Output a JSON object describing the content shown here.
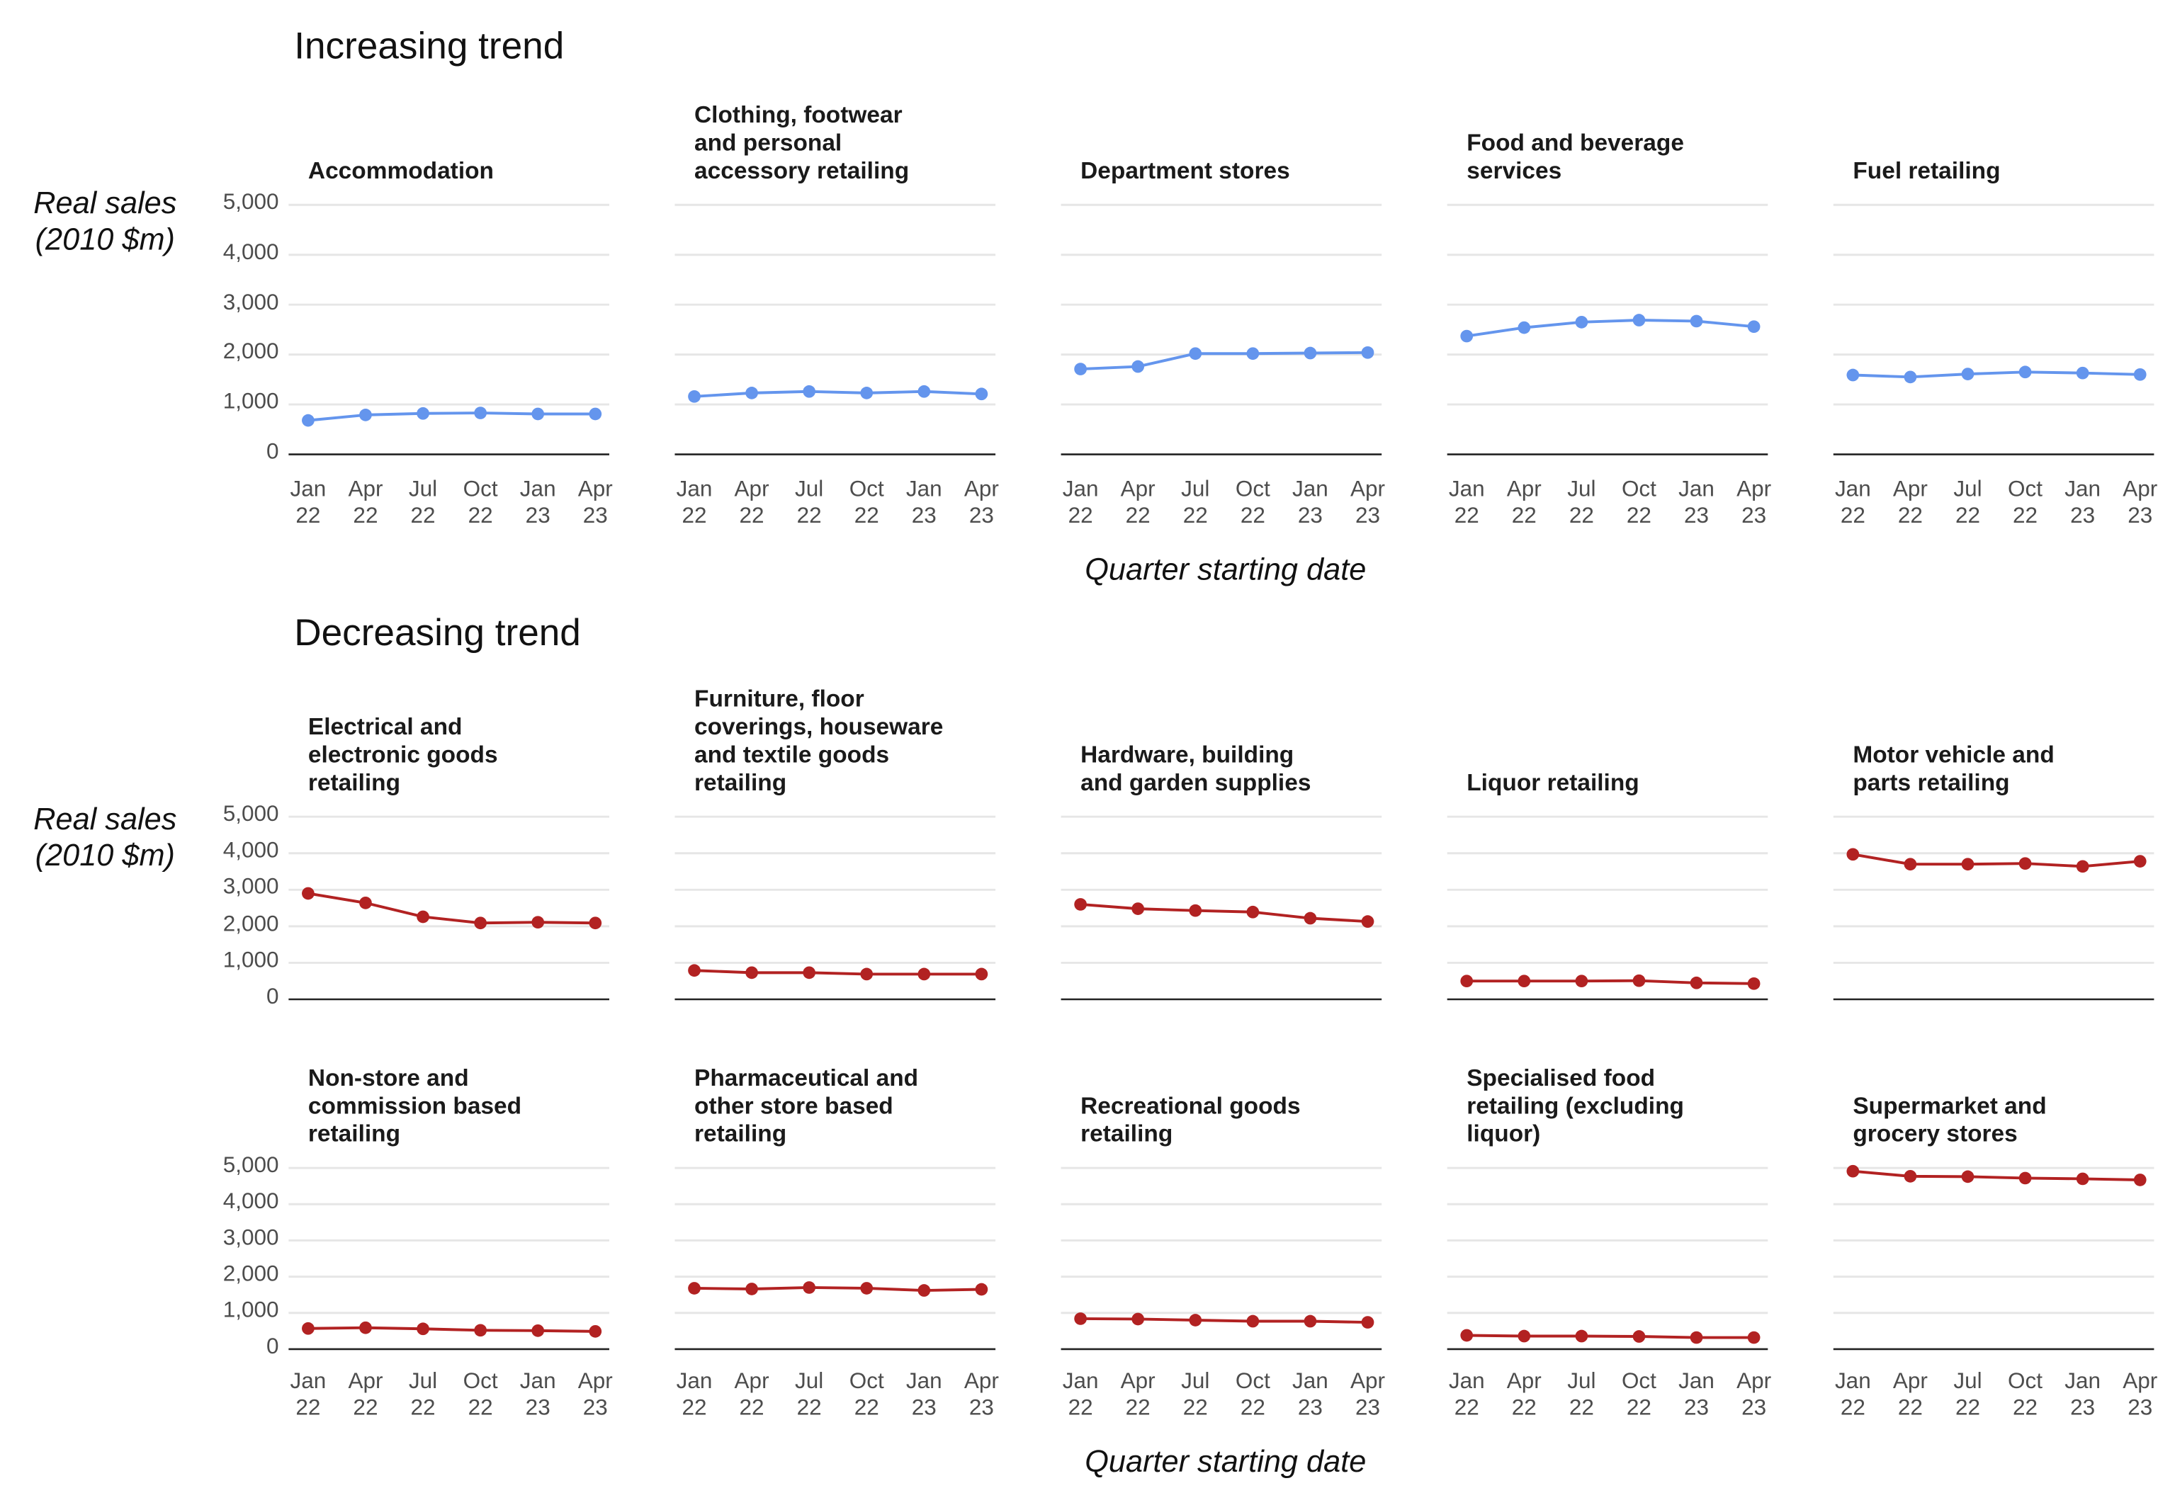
{
  "groups": [
    {
      "title": "Increasing trend",
      "y_label": "Real sales\n(2010 $m)",
      "x_label": "Quarter starting date"
    },
    {
      "title": "Decreasing trend",
      "y_label": "Real sales\n(2010 $m)",
      "x_label": "Quarter starting date"
    }
  ],
  "chart_data": [
    {
      "type": "line",
      "title": "Accommodation",
      "categories": [
        "Jan\n22",
        "Apr\n22",
        "Jul\n22",
        "Oct\n22",
        "Jan\n23",
        "Apr\n23"
      ],
      "values": [
        680,
        790,
        820,
        830,
        810,
        810
      ],
      "color": "#6495ed",
      "ylim": [
        0,
        5000
      ],
      "yticks": [
        0,
        {
          "value": 1000,
          "label": "1,000"
        },
        {
          "value": 2000,
          "label": "2,000"
        },
        {
          "value": 3000,
          "label": "3,000"
        },
        {
          "value": 4000,
          "label": "4,000"
        },
        {
          "value": 5000,
          "label": "5,000"
        }
      ]
    },
    {
      "type": "line",
      "title": "Clothing, footwear\nand personal\naccessory retailing",
      "categories": [
        "Jan\n22",
        "Apr\n22",
        "Jul\n22",
        "Oct\n22",
        "Jan\n23",
        "Apr\n23"
      ],
      "values": [
        1160,
        1230,
        1260,
        1230,
        1260,
        1210
      ],
      "color": "#6495ed",
      "ylim": [
        0,
        5000
      ],
      "yticks": [
        0,
        1000,
        2000,
        3000,
        4000,
        5000
      ]
    },
    {
      "type": "line",
      "title": "Department stores",
      "categories": [
        "Jan\n22",
        "Apr\n22",
        "Jul\n22",
        "Oct\n22",
        "Jan\n23",
        "Apr\n23"
      ],
      "values": [
        1710,
        1760,
        2020,
        2020,
        2030,
        2040
      ],
      "color": "#6495ed",
      "ylim": [
        0,
        5000
      ],
      "yticks": [
        0,
        1000,
        2000,
        3000,
        4000,
        5000
      ]
    },
    {
      "type": "line",
      "title": "Food and beverage\nservices",
      "categories": [
        "Jan\n22",
        "Apr\n22",
        "Jul\n22",
        "Oct\n22",
        "Jan\n23",
        "Apr\n23"
      ],
      "values": [
        2370,
        2540,
        2650,
        2690,
        2670,
        2560
      ],
      "color": "#6495ed",
      "ylim": [
        0,
        5000
      ],
      "yticks": [
        0,
        1000,
        2000,
        3000,
        4000,
        5000
      ]
    },
    {
      "type": "line",
      "title": "Fuel retailing",
      "categories": [
        "Jan\n22",
        "Apr\n22",
        "Jul\n22",
        "Oct\n22",
        "Jan\n23",
        "Apr\n23"
      ],
      "values": [
        1590,
        1550,
        1610,
        1650,
        1630,
        1600
      ],
      "color": "#6495ed",
      "ylim": [
        0,
        5000
      ],
      "yticks": [
        0,
        1000,
        2000,
        3000,
        4000,
        5000
      ]
    },
    {
      "type": "line",
      "title": "Electrical and\nelectronic goods\nretailing",
      "categories": [
        null,
        null,
        null,
        null,
        null,
        null
      ],
      "values": [
        2900,
        2640,
        2260,
        2090,
        2110,
        2090
      ],
      "color": "#b22222",
      "ylim": [
        0,
        5000
      ],
      "yticks": [
        0,
        {
          "value": 1000,
          "label": "1,000"
        },
        {
          "value": 2000,
          "label": "2,000"
        },
        {
          "value": 3000,
          "label": "3,000"
        },
        {
          "value": 4000,
          "label": "4,000"
        },
        {
          "value": 5000,
          "label": "5,000"
        }
      ]
    },
    {
      "type": "line",
      "title": "Furniture, floor\ncoverings, houseware\nand textile goods\nretailing",
      "categories": [
        null,
        null,
        null,
        null,
        null,
        null
      ],
      "values": [
        790,
        730,
        730,
        690,
        690,
        690
      ],
      "color": "#b22222",
      "ylim": [
        0,
        5000
      ],
      "yticks": [
        0,
        1000,
        2000,
        3000,
        4000,
        5000
      ]
    },
    {
      "type": "line",
      "title": "Hardware, building\nand garden supplies",
      "categories": [
        null,
        null,
        null,
        null,
        null,
        null
      ],
      "values": [
        2600,
        2480,
        2430,
        2390,
        2220,
        2130
      ],
      "color": "#b22222",
      "ylim": [
        0,
        5000
      ],
      "yticks": [
        0,
        1000,
        2000,
        3000,
        4000,
        5000
      ]
    },
    {
      "type": "line",
      "title": "Liquor retailing",
      "categories": [
        null,
        null,
        null,
        null,
        null,
        null
      ],
      "values": [
        500,
        500,
        500,
        510,
        450,
        430
      ],
      "color": "#b22222",
      "ylim": [
        0,
        5000
      ],
      "yticks": [
        0,
        1000,
        2000,
        3000,
        4000,
        5000
      ]
    },
    {
      "type": "line",
      "title": "Motor vehicle and\nparts retailing",
      "categories": [
        null,
        null,
        null,
        null,
        null,
        null
      ],
      "values": [
        3970,
        3700,
        3700,
        3720,
        3640,
        3780
      ],
      "color": "#b22222",
      "ylim": [
        0,
        5000
      ],
      "yticks": [
        0,
        1000,
        2000,
        3000,
        4000,
        5000
      ]
    },
    {
      "type": "line",
      "title": "Non-store and\ncommission based\nretailing",
      "categories": [
        "Jan\n22",
        "Apr\n22",
        "Jul\n22",
        "Oct\n22",
        "Jan\n23",
        "Apr\n23"
      ],
      "values": [
        570,
        590,
        560,
        520,
        510,
        490
      ],
      "color": "#b22222",
      "ylim": [
        0,
        5000
      ],
      "yticks": [
        0,
        {
          "value": 1000,
          "label": "1,000"
        },
        {
          "value": 2000,
          "label": "2,000"
        },
        {
          "value": 3000,
          "label": "3,000"
        },
        {
          "value": 4000,
          "label": "4,000"
        },
        {
          "value": 5000,
          "label": "5,000"
        }
      ]
    },
    {
      "type": "line",
      "title": "Pharmaceutical and\nother store based\nretailing",
      "categories": [
        "Jan\n22",
        "Apr\n22",
        "Jul\n22",
        "Oct\n22",
        "Jan\n23",
        "Apr\n23"
      ],
      "values": [
        1680,
        1660,
        1700,
        1680,
        1620,
        1650
      ],
      "color": "#b22222",
      "ylim": [
        0,
        5000
      ],
      "yticks": [
        0,
        1000,
        2000,
        3000,
        4000,
        5000
      ]
    },
    {
      "type": "line",
      "title": "Recreational goods\nretailing",
      "categories": [
        "Jan\n22",
        "Apr\n22",
        "Jul\n22",
        "Oct\n22",
        "Jan\n23",
        "Apr\n23"
      ],
      "values": [
        840,
        830,
        800,
        770,
        770,
        740
      ],
      "color": "#b22222",
      "ylim": [
        0,
        5000
      ],
      "yticks": [
        0,
        1000,
        2000,
        3000,
        4000,
        5000
      ]
    },
    {
      "type": "line",
      "title": "Specialised food\nretailing (excluding\nliquor)",
      "categories": [
        "Jan\n22",
        "Apr\n22",
        "Jul\n22",
        "Oct\n22",
        "Jan\n23",
        "Apr\n23"
      ],
      "values": [
        380,
        360,
        360,
        350,
        320,
        320
      ],
      "color": "#b22222",
      "ylim": [
        0,
        5000
      ],
      "yticks": [
        0,
        1000,
        2000,
        3000,
        4000,
        5000
      ]
    },
    {
      "type": "line",
      "title": "Supermarket and\ngrocery stores",
      "categories": [
        "Jan\n22",
        "Apr\n22",
        "Jul\n22",
        "Oct\n22",
        "Jan\n23",
        "Apr\n23"
      ],
      "values": [
        4910,
        4770,
        4760,
        4720,
        4700,
        4670
      ],
      "color": "#b22222",
      "ylim": [
        0,
        5000
      ],
      "yticks": [
        0,
        1000,
        2000,
        3000,
        4000,
        5000
      ]
    }
  ]
}
